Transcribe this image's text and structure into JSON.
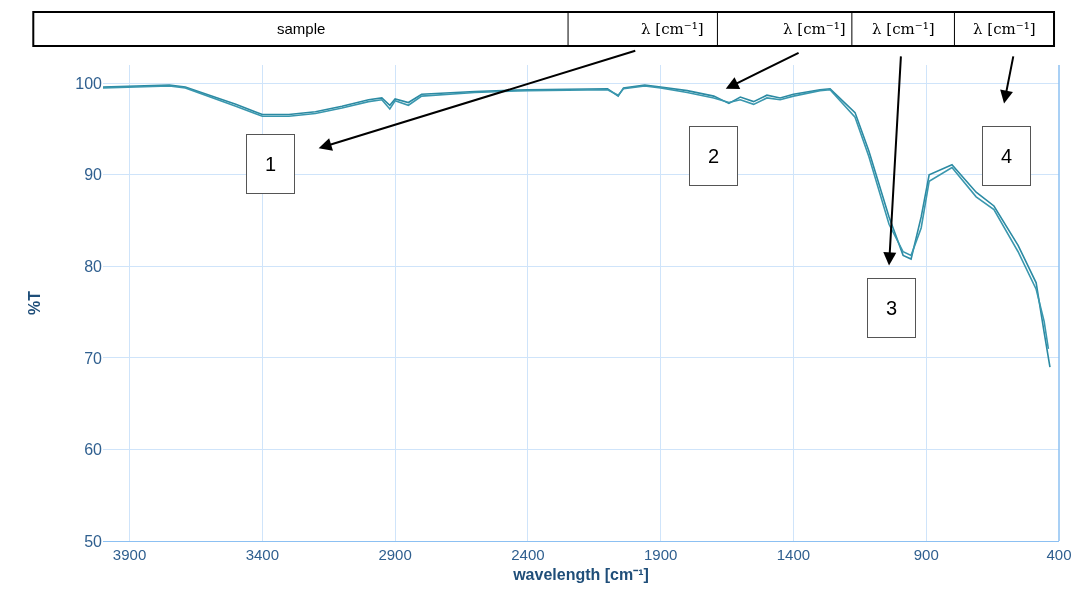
{
  "chart_data": {
    "type": "line",
    "xlabel": "wavelength [cm⁻¹]",
    "ylabel": "%T",
    "xlim": [
      4000,
      400
    ],
    "xticks": [
      3900,
      3400,
      2900,
      2400,
      1900,
      1400,
      900,
      400
    ],
    "ylim": [
      50,
      102
    ],
    "yticks": [
      50,
      60,
      70,
      80,
      90,
      100
    ],
    "grid": true,
    "marker": "none",
    "line_style": "solid",
    "annotations": [
      "sample",
      "λ [cm⁻¹]",
      "λ [cm⁻¹]",
      "λ [cm⁻¹]",
      "λ [cm⁻¹]",
      "1",
      "2",
      "3",
      "4"
    ],
    "series": [
      {
        "color": "#2b8aa3",
        "x": [
          4000,
          3750,
          3690,
          3500,
          3400,
          3300,
          3200,
          3100,
          3000,
          2950,
          2920,
          2900,
          2850,
          2800,
          2600,
          2400,
          2100,
          2060,
          2040,
          1960,
          1900,
          1800,
          1700,
          1643,
          1600,
          1550,
          1500,
          1450,
          1400,
          1300,
          1262,
          1168,
          1116,
          1040,
          987,
          957,
          919,
          889,
          803,
          712,
          645,
          554,
          486,
          456,
          434
        ],
        "values": [
          99.6,
          99.8,
          99.6,
          97.7,
          96.6,
          96.6,
          96.9,
          97.5,
          98.2,
          98.4,
          97.6,
          98.3,
          97.9,
          98.8,
          99.1,
          99.3,
          99.4,
          98.6,
          99.5,
          99.8,
          99.6,
          99.2,
          98.6,
          97.8,
          98.5,
          98.0,
          98.7,
          98.4,
          98.8,
          99.3,
          99.4,
          96.8,
          92.6,
          85.4,
          81.2,
          80.8,
          85.4,
          90.0,
          91.1,
          88.1,
          86.6,
          82.3,
          78.2,
          72.8,
          69.0
        ]
      },
      {
        "color": "#3a97ae",
        "x": [
          4000,
          3750,
          3690,
          3500,
          3400,
          3300,
          3200,
          3100,
          3000,
          2950,
          2920,
          2900,
          2850,
          2800,
          2600,
          2400,
          2100,
          2060,
          2040,
          1960,
          1900,
          1800,
          1700,
          1643,
          1600,
          1550,
          1500,
          1450,
          1400,
          1300,
          1262,
          1168,
          1116,
          1040,
          987,
          957,
          919,
          889,
          803,
          712,
          645,
          554,
          486,
          456,
          440
        ],
        "values": [
          99.5,
          99.7,
          99.5,
          97.5,
          96.4,
          96.4,
          96.7,
          97.3,
          98.0,
          98.2,
          97.2,
          98.1,
          97.6,
          98.6,
          99.0,
          99.2,
          99.3,
          98.7,
          99.4,
          99.7,
          99.5,
          99.0,
          98.4,
          97.9,
          98.2,
          97.7,
          98.4,
          98.2,
          98.6,
          99.2,
          99.3,
          96.3,
          92.0,
          84.6,
          81.6,
          81.2,
          84.2,
          89.3,
          90.8,
          87.6,
          86.2,
          81.6,
          77.5,
          74.0,
          71.0
        ]
      }
    ]
  }
}
